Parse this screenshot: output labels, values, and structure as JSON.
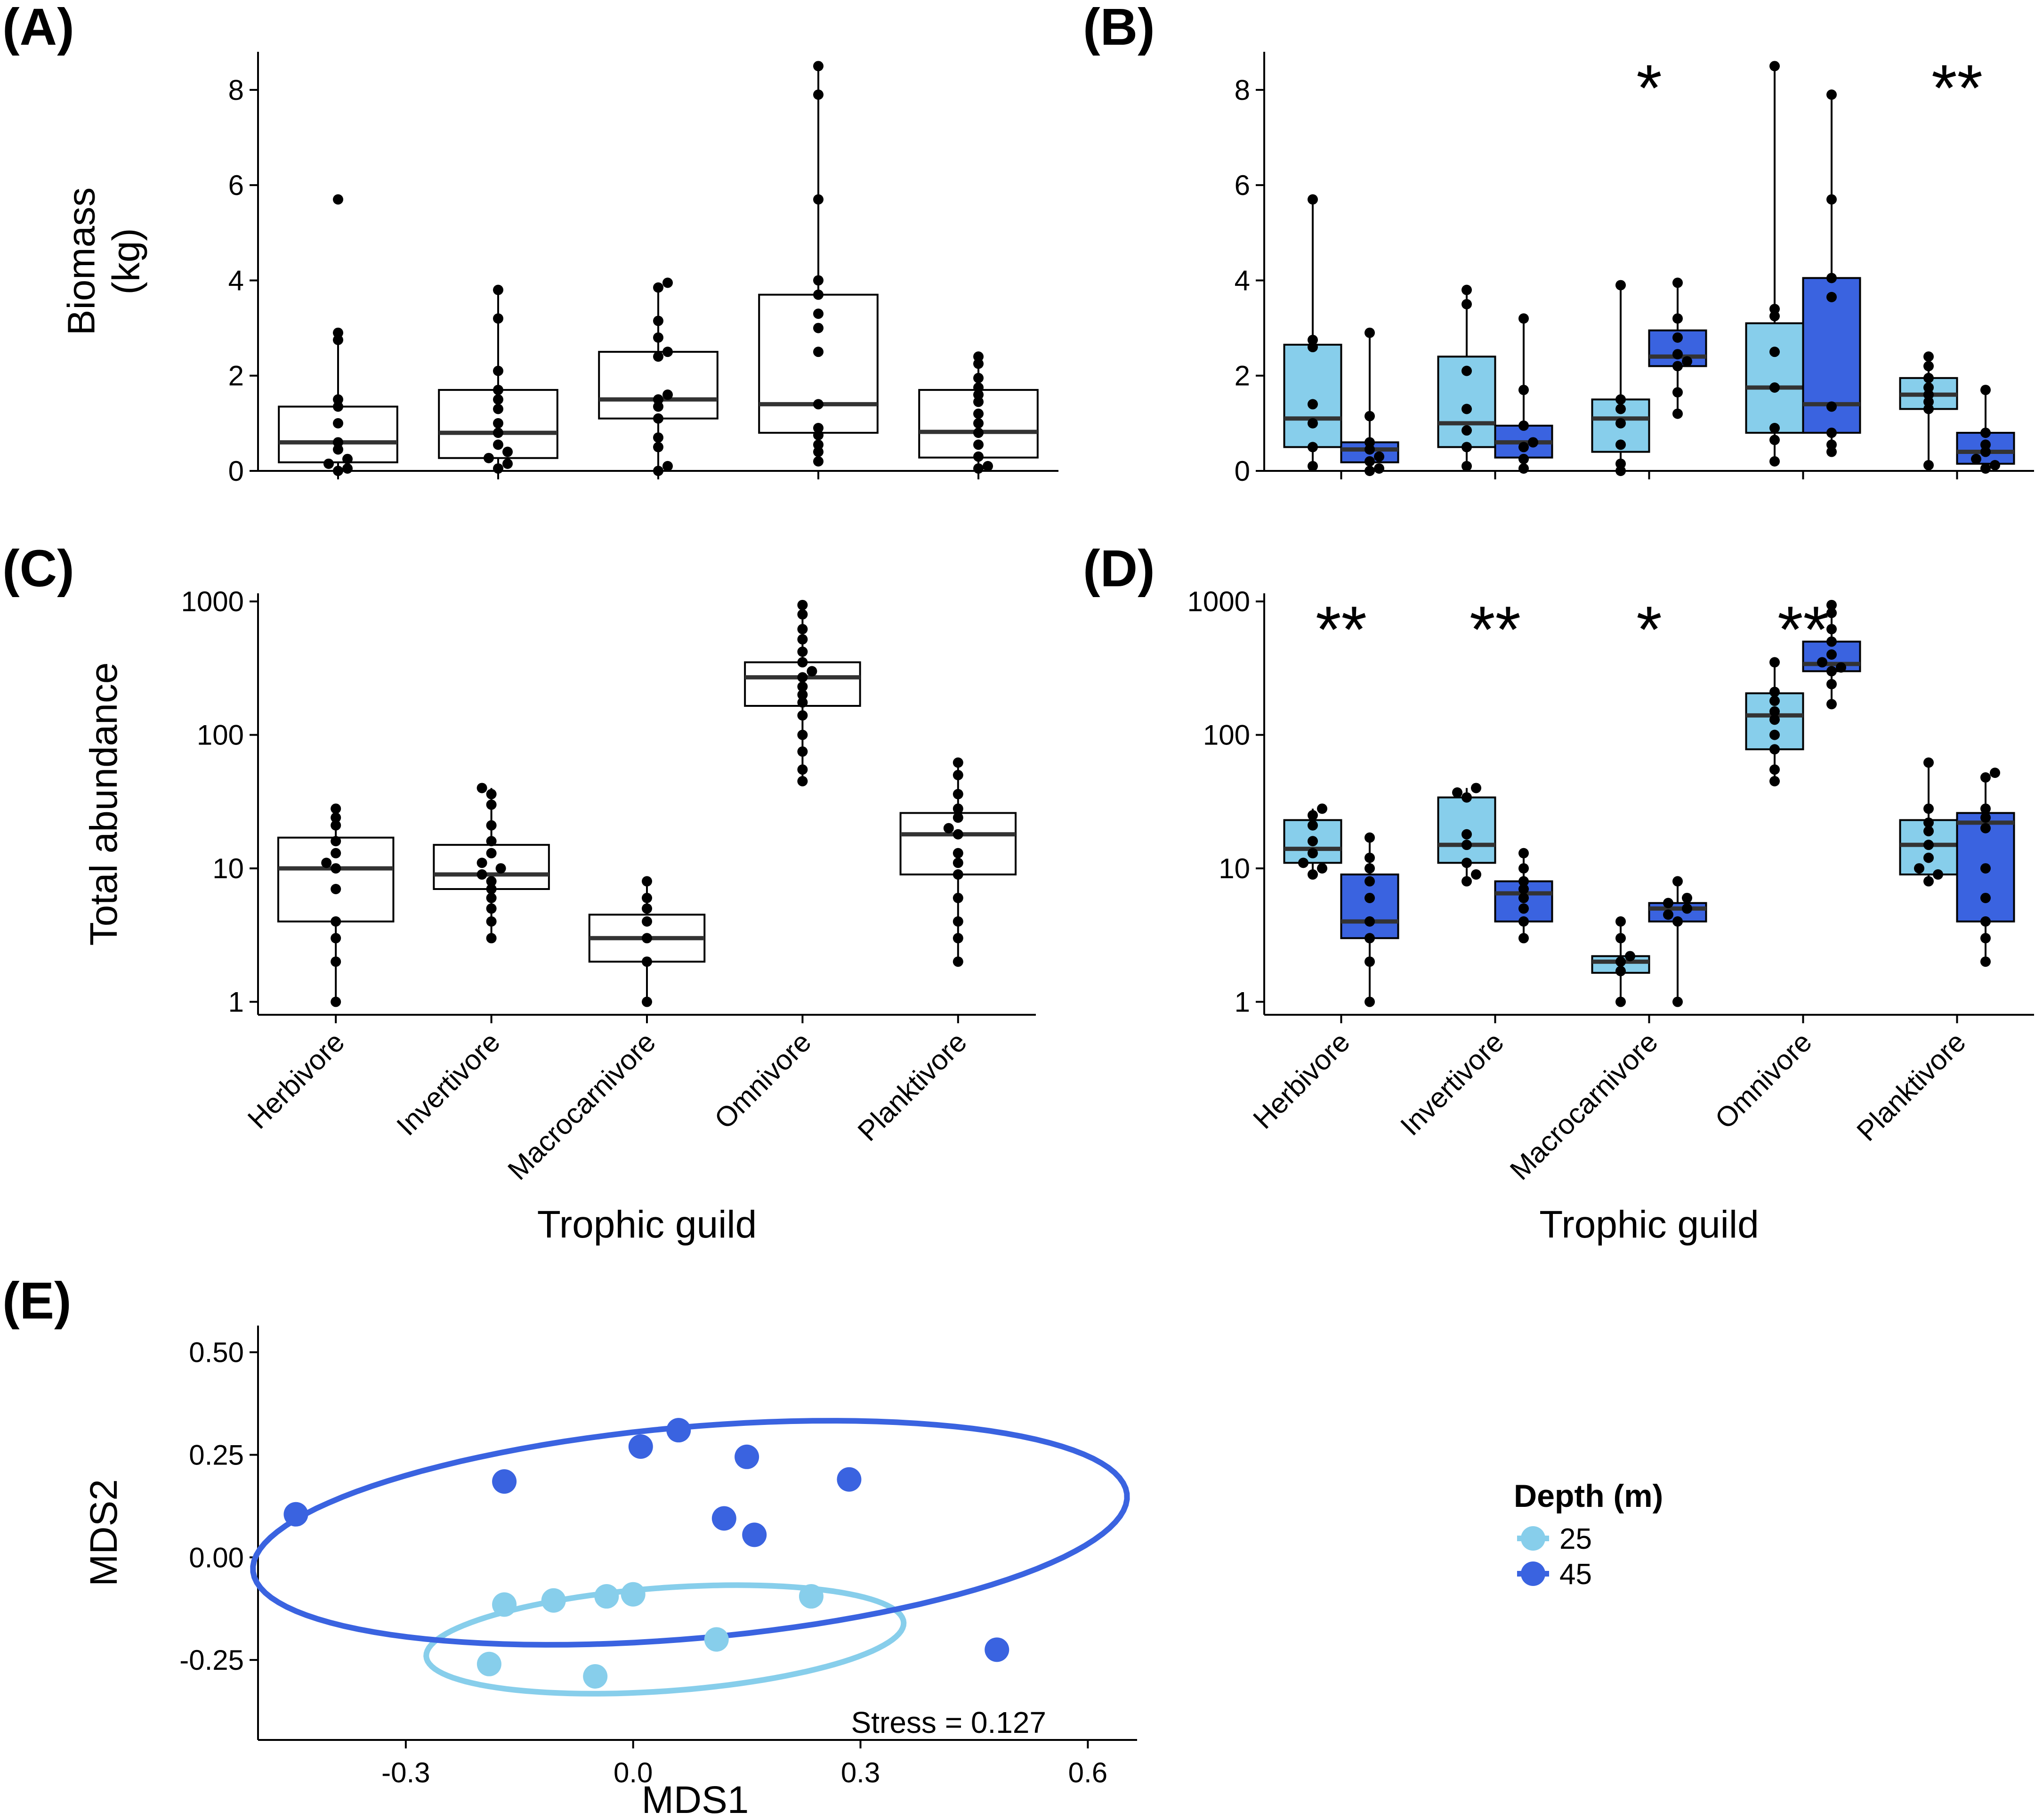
{
  "colors": {
    "shallow": "#87CEEB",
    "deep": "#3A63E0",
    "plain": "#FFFFFF",
    "stroke": "#000000",
    "median": "#333333"
  },
  "chart_data": [
    {
      "id": "A",
      "panel_label": "(A)",
      "type": "box",
      "ylabel": [
        "Biomass",
        "(kg)"
      ],
      "xlabel": "",
      "ylim": [
        0,
        8.8
      ],
      "yticks": [
        "0",
        "2",
        "4",
        "6",
        "8"
      ],
      "show_x_labels": false,
      "categories": [
        "Herbivore",
        "Invertivore",
        "Macrocarnivore",
        "Omnivore",
        "Planktivore"
      ],
      "series": [
        {
          "name": "all",
          "color": "plain",
          "boxes": [
            {
              "min": 0.05,
              "q1": 0.18,
              "median": 0.6,
              "q3": 1.35,
              "max": 2.9,
              "points": [
                5.7,
                2.9,
                2.75,
                1.5,
                1.35,
                1.0,
                0.6,
                0.45,
                0.25,
                0.15,
                0.05,
                0.0
              ]
            },
            {
              "min": 0.05,
              "q1": 0.27,
              "median": 0.8,
              "q3": 1.7,
              "max": 3.8,
              "points": [
                3.8,
                3.2,
                2.1,
                1.7,
                1.5,
                1.3,
                1.0,
                0.8,
                0.55,
                0.4,
                0.27,
                0.15,
                0.05
              ]
            },
            {
              "min": 0.0,
              "q1": 1.1,
              "median": 1.5,
              "q3": 2.5,
              "max": 3.95,
              "points": [
                3.95,
                3.85,
                3.15,
                2.8,
                2.5,
                2.4,
                1.6,
                1.5,
                1.35,
                1.1,
                0.7,
                0.5,
                0.1,
                0.0
              ]
            },
            {
              "min": 0.2,
              "q1": 0.8,
              "median": 1.4,
              "q3": 3.7,
              "max": 8.5,
              "points": [
                8.5,
                7.9,
                5.7,
                4.0,
                3.7,
                3.3,
                3.0,
                2.5,
                1.4,
                0.9,
                0.75,
                0.55,
                0.4,
                0.2
              ]
            },
            {
              "min": 0.05,
              "q1": 0.28,
              "median": 0.82,
              "q3": 1.7,
              "max": 2.4,
              "points": [
                2.4,
                2.25,
                1.95,
                1.75,
                1.6,
                1.45,
                1.2,
                1.0,
                0.8,
                0.55,
                0.3,
                0.1,
                0.05
              ]
            }
          ]
        }
      ]
    },
    {
      "id": "B",
      "panel_label": "(B)",
      "type": "box",
      "ylabel": [],
      "xlabel": "",
      "ylim": [
        0,
        8.8
      ],
      "yticks": [
        "0",
        "2",
        "4",
        "6",
        "8"
      ],
      "show_x_labels": false,
      "categories": [
        "Herbivore",
        "Invertivore",
        "Macrocarnivore",
        "Omnivore",
        "Planktivore"
      ],
      "significance": [
        "",
        "",
        "*",
        "",
        "**"
      ],
      "series": [
        {
          "name": "25",
          "color": "shallow",
          "boxes": [
            {
              "min": 0.08,
              "q1": 0.5,
              "median": 1.1,
              "q3": 2.65,
              "max": 5.7,
              "points": [
                5.7,
                2.75,
                2.6,
                1.4,
                1.0,
                0.5,
                0.1
              ]
            },
            {
              "min": 0.05,
              "q1": 0.5,
              "median": 1.0,
              "q3": 2.4,
              "max": 3.8,
              "points": [
                3.8,
                3.5,
                2.1,
                1.3,
                0.85,
                0.5,
                0.1
              ]
            },
            {
              "min": 0.0,
              "q1": 0.4,
              "median": 1.1,
              "q3": 1.5,
              "max": 3.9,
              "points": [
                3.9,
                1.5,
                1.3,
                1.0,
                0.55,
                0.15,
                0.0
              ]
            },
            {
              "min": 0.2,
              "q1": 0.8,
              "median": 1.75,
              "q3": 3.1,
              "max": 8.5,
              "points": [
                8.5,
                3.4,
                3.25,
                2.5,
                1.75,
                0.9,
                0.65,
                0.2
              ]
            },
            {
              "min": 0.12,
              "q1": 1.3,
              "median": 1.6,
              "q3": 1.95,
              "max": 2.4,
              "points": [
                2.4,
                2.2,
                1.95,
                1.75,
                1.6,
                1.45,
                1.3,
                0.12
              ]
            }
          ]
        },
        {
          "name": "45",
          "color": "deep",
          "boxes": [
            {
              "min": 0.0,
              "q1": 0.18,
              "median": 0.45,
              "q3": 0.6,
              "max": 2.9,
              "points": [
                2.9,
                1.15,
                0.6,
                0.45,
                0.3,
                0.2,
                0.05,
                0.0
              ]
            },
            {
              "min": 0.05,
              "q1": 0.28,
              "median": 0.6,
              "q3": 0.95,
              "max": 3.2,
              "points": [
                3.2,
                1.7,
                0.95,
                0.6,
                0.5,
                0.25,
                0.05
              ]
            },
            {
              "min": 1.2,
              "q1": 2.2,
              "median": 2.4,
              "q3": 2.95,
              "max": 3.95,
              "points": [
                3.95,
                3.2,
                2.8,
                2.45,
                2.3,
                2.2,
                1.65,
                1.2
              ]
            },
            {
              "min": 0.4,
              "q1": 0.8,
              "median": 1.4,
              "q3": 4.05,
              "max": 7.9,
              "points": [
                7.9,
                5.7,
                4.05,
                3.65,
                1.35,
                0.8,
                0.55,
                0.4
              ]
            },
            {
              "min": 0.05,
              "q1": 0.15,
              "median": 0.4,
              "q3": 0.8,
              "max": 1.7,
              "points": [
                1.7,
                0.8,
                0.55,
                0.4,
                0.25,
                0.12,
                0.05
              ]
            }
          ]
        }
      ]
    },
    {
      "id": "C",
      "panel_label": "(C)",
      "type": "box",
      "yscale": "log",
      "ylabel": [
        "Total abundance"
      ],
      "xlabel": "Trophic guild",
      "ylim": [
        0.8,
        1150
      ],
      "yticks": [
        "1",
        "10",
        "100",
        "1000"
      ],
      "show_x_labels": true,
      "categories": [
        "Herbivore",
        "Invertivore",
        "Macrocarnivore",
        "Omnivore",
        "Planktivore"
      ],
      "series": [
        {
          "name": "all",
          "color": "plain",
          "boxes": [
            {
              "min": 1,
              "q1": 4,
              "median": 10,
              "q3": 17,
              "max": 28,
              "points": [
                28,
                24,
                21,
                16,
                13,
                11,
                10,
                7,
                4,
                3,
                2,
                1
              ]
            },
            {
              "min": 3,
              "q1": 7,
              "median": 9,
              "q3": 15,
              "max": 40,
              "points": [
                40,
                36,
                30,
                21,
                16,
                13,
                11,
                10,
                9,
                8,
                7,
                6,
                5,
                4,
                3
              ]
            },
            {
              "min": 1,
              "q1": 2,
              "median": 3,
              "q3": 4.5,
              "max": 8,
              "points": [
                8,
                6,
                5,
                4,
                3,
                2,
                1
              ]
            },
            {
              "min": 45,
              "q1": 165,
              "median": 270,
              "q3": 350,
              "max": 940,
              "points": [
                940,
                800,
                620,
                520,
                420,
                350,
                300,
                270,
                230,
                200,
                175,
                140,
                100,
                75,
                55,
                45
              ]
            },
            {
              "min": 2,
              "q1": 9,
              "median": 18,
              "q3": 26,
              "max": 62,
              "points": [
                62,
                50,
                36,
                28,
                24,
                20,
                18,
                13,
                11,
                9,
                6,
                4,
                3,
                2
              ]
            }
          ]
        }
      ]
    },
    {
      "id": "D",
      "panel_label": "(D)",
      "type": "box",
      "yscale": "log",
      "ylabel": [],
      "xlabel": "Trophic guild",
      "ylim": [
        0.8,
        1150
      ],
      "yticks": [
        "1",
        "10",
        "100",
        "1000"
      ],
      "show_x_labels": true,
      "categories": [
        "Herbivore",
        "Invertivore",
        "Macrocarnivore",
        "Omnivore",
        "Planktivore"
      ],
      "significance": [
        "**",
        "**",
        "*",
        "**",
        ""
      ],
      "series": [
        {
          "name": "25",
          "color": "shallow",
          "boxes": [
            {
              "min": 9,
              "q1": 11,
              "median": 14,
              "q3": 23,
              "max": 28,
              "points": [
                28,
                25,
                21,
                16,
                13,
                11,
                10,
                9
              ]
            },
            {
              "min": 8,
              "q1": 11,
              "median": 15,
              "q3": 34,
              "max": 40,
              "points": [
                40,
                37,
                34,
                18,
                15,
                11,
                9,
                8
              ]
            },
            {
              "min": 1,
              "q1": 1.65,
              "median": 2,
              "q3": 2.2,
              "max": 4,
              "points": [
                4,
                3,
                2.2,
                2,
                1.7,
                1
              ]
            },
            {
              "min": 45,
              "q1": 78,
              "median": 140,
              "q3": 205,
              "max": 350,
              "points": [
                350,
                210,
                180,
                150,
                130,
                100,
                78,
                55,
                45
              ]
            },
            {
              "min": 8,
              "q1": 9,
              "median": 15,
              "q3": 23,
              "max": 62,
              "points": [
                62,
                28,
                22,
                19,
                15,
                12,
                10,
                9,
                8
              ]
            }
          ]
        },
        {
          "name": "45",
          "color": "deep",
          "boxes": [
            {
              "min": 1,
              "q1": 3,
              "median": 4,
              "q3": 9,
              "max": 17,
              "points": [
                17,
                12,
                10,
                8,
                6,
                4,
                3,
                2,
                1
              ]
            },
            {
              "min": 3,
              "q1": 4,
              "median": 6.5,
              "q3": 8,
              "max": 13,
              "points": [
                13,
                10,
                8,
                7,
                6,
                5,
                4,
                3
              ]
            },
            {
              "min": 1,
              "q1": 4,
              "median": 5,
              "q3": 5.5,
              "max": 8,
              "points": [
                8,
                6,
                5.5,
                5,
                4.5,
                4,
                1
              ]
            },
            {
              "min": 170,
              "q1": 300,
              "median": 340,
              "q3": 500,
              "max": 940,
              "points": [
                940,
                820,
                620,
                500,
                400,
                350,
                320,
                300,
                240,
                170
              ]
            },
            {
              "min": 2,
              "q1": 4,
              "median": 22,
              "q3": 26,
              "max": 52,
              "points": [
                52,
                48,
                28,
                24,
                20,
                10,
                6,
                4,
                3,
                2
              ]
            }
          ]
        }
      ]
    },
    {
      "id": "E",
      "panel_label": "(E)",
      "type": "scatter",
      "xlabel": "MDS1",
      "ylabel": "MDS2",
      "xlim": [
        -0.495,
        0.665
      ],
      "ylim": [
        -0.445,
        0.565
      ],
      "xticks": [
        "-0.3",
        "0.0",
        "0.3",
        "0.6"
      ],
      "yticks": [
        "0.50",
        "0.25",
        "0.00",
        "-0.25"
      ],
      "annotation": "Stress = 0.127",
      "legend": {
        "title": "Depth (m)",
        "entries": [
          "25",
          "45"
        ],
        "position": "right"
      },
      "series": [
        {
          "name": "25",
          "color": "shallow",
          "points": [
            [
              -0.17,
              -0.115
            ],
            [
              -0.105,
              -0.105
            ],
            [
              -0.035,
              -0.095
            ],
            [
              0.0,
              -0.09
            ],
            [
              0.235,
              -0.095
            ],
            [
              0.11,
              -0.2
            ],
            [
              -0.19,
              -0.26
            ],
            [
              -0.05,
              -0.29
            ]
          ],
          "ellipse": {
            "center": [
              0.042,
              -0.2
            ],
            "rx": 0.318,
            "ry": 0.125,
            "angle_deg": 8.5
          }
        },
        {
          "name": "45",
          "color": "deep",
          "points": [
            [
              -0.445,
              0.105
            ],
            [
              -0.17,
              0.185
            ],
            [
              0.01,
              0.27
            ],
            [
              0.06,
              0.31
            ],
            [
              0.15,
              0.245
            ],
            [
              0.285,
              0.19
            ],
            [
              0.12,
              0.095
            ],
            [
              0.16,
              0.055
            ],
            [
              0.48,
              -0.225
            ]
          ],
          "ellipse": {
            "center": [
              0.075,
              0.06
            ],
            "rx": 0.585,
            "ry": 0.255,
            "angle_deg": 10.7
          }
        }
      ]
    }
  ]
}
